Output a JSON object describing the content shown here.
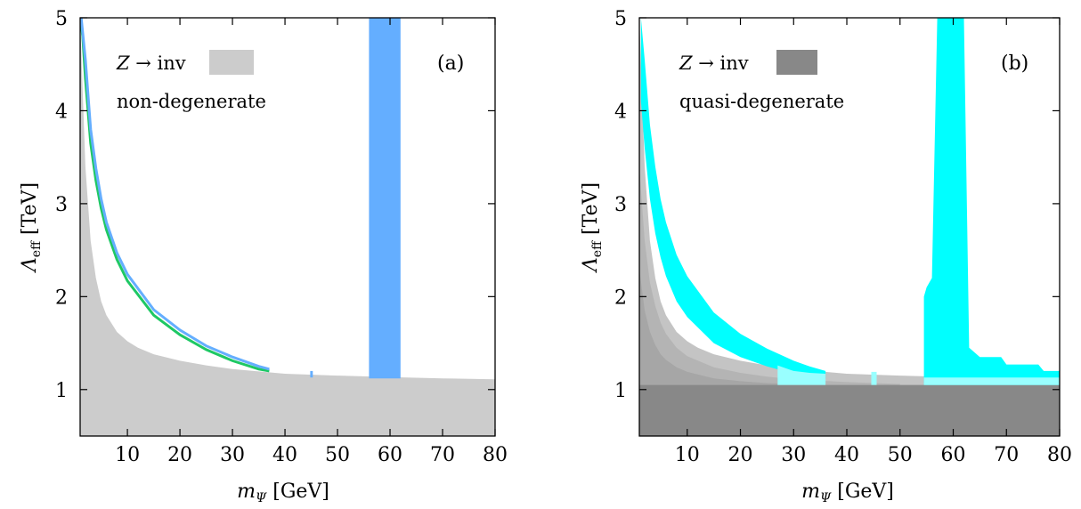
{
  "colors": {
    "z_inv_light": "#cccccc",
    "z_inv_dark": "#888888",
    "shade_mid": "#b4b4b4",
    "shade_light": "#c4c4c4",
    "blue": "#64aeff",
    "green": "#1ec864",
    "cyan": "#00ffff",
    "cyan_light": "#99ffff"
  },
  "chart_data": [
    {
      "type": "area",
      "panel": "(a)",
      "xlabel": "m_Ψ [GeV]",
      "xlabel_main": "m",
      "xlabel_sub": "Ψ",
      "xlabel_unit": " [GeV]",
      "ylabel": "Λ_eff [TeV]",
      "ylabel_main": "Λ",
      "ylabel_sub": "eff",
      "ylabel_unit": " [TeV]",
      "xlim": [
        1,
        80
      ],
      "ylim": [
        0.5,
        5
      ],
      "xticks": [
        "10",
        "20",
        "30",
        "40",
        "50",
        "60",
        "70",
        "80"
      ],
      "yticks": [
        "1",
        "2",
        "3",
        "4",
        "5"
      ],
      "grid": false,
      "legend": {
        "placement": "top-left",
        "entry": "Z → inv",
        "entry_var": "Z",
        "entry_rest": " → inv",
        "note": "non-degenerate"
      },
      "series": [
        {
          "name": "Z → inv",
          "kind": "excluded-region",
          "x": [
            1.0,
            1.5,
            2,
            3,
            4,
            5,
            6,
            8,
            10,
            12,
            15,
            20,
            25,
            30,
            35,
            40,
            50,
            60,
            70,
            80
          ],
          "y_upper": [
            5.0,
            4.2,
            3.4,
            2.6,
            2.2,
            1.95,
            1.8,
            1.62,
            1.52,
            1.45,
            1.38,
            1.31,
            1.26,
            1.22,
            1.195,
            1.17,
            1.15,
            1.135,
            1.12,
            1.11
          ]
        },
        {
          "kind": "allowed-curve",
          "x": [
            1.0,
            1.5,
            2,
            3,
            4,
            5,
            6,
            8,
            10,
            15,
            20,
            25,
            30,
            35,
            37
          ],
          "y": [
            5.0,
            4.8,
            4.35,
            3.65,
            3.25,
            2.95,
            2.72,
            2.4,
            2.17,
            1.8,
            1.59,
            1.43,
            1.31,
            1.22,
            1.2
          ]
        },
        {
          "kind": "allowed-curve",
          "x": [
            1.2,
            2,
            3,
            4,
            5,
            6,
            8,
            10,
            15,
            20,
            25,
            30,
            35,
            37
          ],
          "y": [
            5.0,
            4.55,
            3.8,
            3.38,
            3.05,
            2.8,
            2.47,
            2.24,
            1.86,
            1.64,
            1.47,
            1.35,
            1.25,
            1.22
          ]
        },
        {
          "kind": "allowed-band",
          "x": [
            56,
            62
          ],
          "y": [
            1.12,
            5.0
          ]
        },
        {
          "kind": "allowed-spike",
          "x": [
            44.8,
            45.3
          ],
          "y": [
            1.13,
            1.2
          ]
        }
      ]
    },
    {
      "type": "area",
      "panel": "(b)",
      "xlabel": "m_Ψ [GeV]",
      "xlabel_main": "m",
      "xlabel_sub": "Ψ",
      "xlabel_unit": " [GeV]",
      "ylabel": "Λ_eff [TeV]",
      "ylabel_main": "Λ",
      "ylabel_sub": "eff",
      "ylabel_unit": " [TeV]",
      "xlim": [
        1,
        80
      ],
      "ylim": [
        0.5,
        5
      ],
      "xticks": [
        "10",
        "20",
        "30",
        "40",
        "50",
        "60",
        "70",
        "80"
      ],
      "yticks": [
        "1",
        "2",
        "3",
        "4",
        "5"
      ],
      "grid": false,
      "legend": {
        "placement": "top-left",
        "entry": "Z → inv",
        "entry_var": "Z",
        "entry_rest": " → inv",
        "note": "quasi-degenerate"
      },
      "series": [
        {
          "name": "Z → inv",
          "kind": "excluded-region",
          "x": [
            1,
            80
          ],
          "y_upper": [
            1.05,
            1.05
          ]
        },
        {
          "kind": "shaded-region-light",
          "x": [
            1.0,
            1.5,
            2,
            3,
            4,
            5,
            6,
            8,
            10,
            12,
            15,
            20,
            25,
            30,
            35,
            40,
            50,
            60,
            70,
            80
          ],
          "y_upper": [
            5.0,
            4.2,
            3.4,
            2.6,
            2.2,
            1.95,
            1.8,
            1.62,
            1.52,
            1.45,
            1.38,
            1.31,
            1.26,
            1.22,
            1.195,
            1.17,
            1.15,
            1.135,
            1.12,
            1.11
          ]
        },
        {
          "kind": "shaded-region-mid",
          "x": [
            1.0,
            2,
            3,
            4,
            5,
            6,
            8,
            10,
            15,
            20,
            25,
            30,
            40,
            50
          ],
          "y_upper": [
            3.4,
            2.6,
            2.15,
            1.9,
            1.72,
            1.6,
            1.45,
            1.36,
            1.24,
            1.18,
            1.14,
            1.11,
            1.08,
            1.06
          ]
        },
        {
          "kind": "shaded-region-dark",
          "x": [
            1.0,
            2,
            3,
            4,
            5,
            6,
            8,
            10,
            15,
            20,
            25,
            30
          ],
          "y_upper": [
            2.3,
            1.85,
            1.62,
            1.48,
            1.38,
            1.32,
            1.24,
            1.19,
            1.12,
            1.09,
            1.07,
            1.06
          ]
        },
        {
          "kind": "allowed-band-curve",
          "x": [
            1.3,
            2,
            3,
            4,
            5,
            6,
            8,
            10,
            15,
            20,
            25,
            30,
            33,
            36
          ],
          "y_upper": [
            5.0,
            4.55,
            3.85,
            3.4,
            3.05,
            2.8,
            2.45,
            2.22,
            1.83,
            1.6,
            1.44,
            1.31,
            1.25,
            1.2
          ],
          "y_lower": [
            4.1,
            3.6,
            3.05,
            2.68,
            2.42,
            2.22,
            1.95,
            1.78,
            1.5,
            1.35,
            1.25,
            1.17,
            1.14,
            1.12
          ]
        },
        {
          "kind": "allowed-band-overlap",
          "x": [
            27,
            30,
            33,
            36
          ],
          "y_upper": [
            1.26,
            1.2,
            1.18,
            1.17
          ],
          "y_lower": [
            1.05,
            1.05,
            1.05,
            1.05
          ]
        },
        {
          "kind": "allowed-spike",
          "x": [
            44.6,
            45.6
          ],
          "y": [
            1.05,
            1.19
          ]
        },
        {
          "kind": "allowed-region-right",
          "x": [
            54.5,
            55,
            56,
            57,
            62,
            63,
            64,
            65,
            69,
            70,
            76,
            77,
            80
          ],
          "y_upper": [
            2.0,
            2.1,
            2.2,
            5.0,
            5.0,
            1.45,
            1.4,
            1.35,
            1.35,
            1.27,
            1.27,
            1.2,
            1.2
          ]
        },
        {
          "kind": "allowed-region-right-overlap",
          "x": [
            54.5,
            80
          ],
          "y_upper": [
            1.13,
            1.13
          ],
          "y_lower": [
            1.05,
            1.05
          ]
        }
      ]
    }
  ]
}
